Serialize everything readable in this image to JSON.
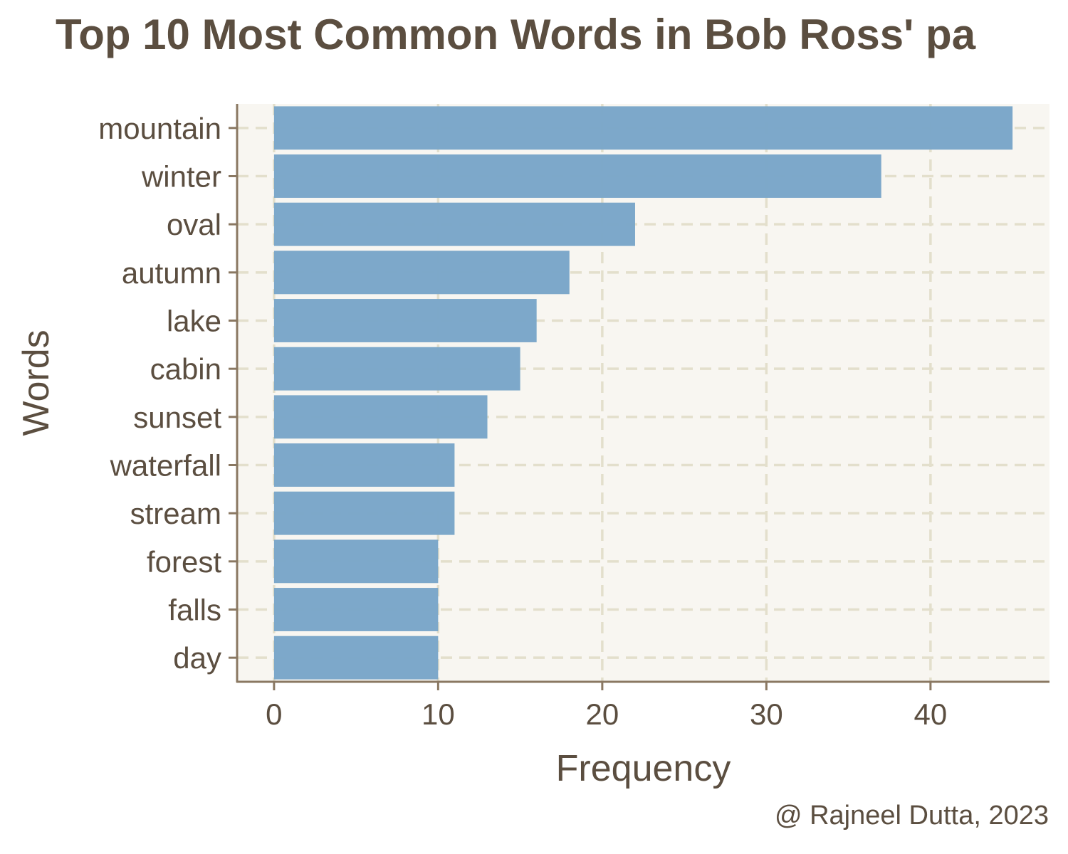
{
  "chart_data": {
    "type": "bar",
    "orientation": "horizontal",
    "title": "Top 10 Most Common Words in Bob Ross' pa",
    "xlabel": "Frequency",
    "ylabel": "Words",
    "caption": "@ Rajneel Dutta, 2023",
    "categories": [
      "mountain",
      "winter",
      "oval",
      "autumn",
      "lake",
      "cabin",
      "sunset",
      "waterfall",
      "stream",
      "forest",
      "falls",
      "day"
    ],
    "values": [
      45,
      37,
      22,
      18,
      16,
      15,
      13,
      11,
      11,
      10,
      10,
      10
    ],
    "xlim": [
      -2.25,
      47.25
    ],
    "xticks": [
      0,
      10,
      20,
      30,
      40
    ],
    "grid": true,
    "legend": "none",
    "colors": {
      "bar": "#7aa6c9",
      "panel": "#f8f6f1",
      "grid": "#e3dfcc",
      "axis": "#8a7862",
      "text": "#5b4e40"
    }
  }
}
